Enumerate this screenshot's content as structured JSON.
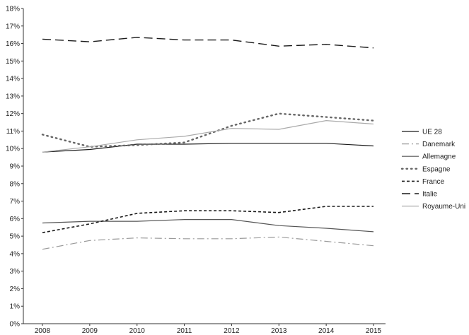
{
  "chart_data": {
    "type": "line",
    "title": "",
    "xlabel": "",
    "ylabel": "",
    "x": [
      "2008",
      "2009",
      "2010",
      "2011",
      "2012",
      "2013",
      "2014",
      "2015"
    ],
    "y_ticks": [
      "0%",
      "1%",
      "2%",
      "3%",
      "4%",
      "5%",
      "6%",
      "7%",
      "8%",
      "9%",
      "10%",
      "11%",
      "12%",
      "13%",
      "14%",
      "15%",
      "16%",
      "17%",
      "18%"
    ],
    "ylim": [
      0,
      18
    ],
    "grid": false,
    "legend_position": "right",
    "series": [
      {
        "name": "UE 28",
        "values": [
          9.8,
          9.95,
          10.25,
          10.25,
          10.3,
          10.3,
          10.3,
          10.15
        ],
        "color": "#1a1a1a",
        "style": "solid"
      },
      {
        "name": "Danemark",
        "values": [
          4.25,
          4.75,
          4.9,
          4.85,
          4.85,
          4.95,
          4.7,
          4.45
        ],
        "color": "#9a9a9a",
        "style": "dashdot"
      },
      {
        "name": "Allemagne",
        "values": [
          5.75,
          5.85,
          5.85,
          5.95,
          5.95,
          5.6,
          5.45,
          5.25
        ],
        "color": "#555555",
        "style": "solid"
      },
      {
        "name": "Espagne",
        "values": [
          10.8,
          10.1,
          10.2,
          10.35,
          11.3,
          12.0,
          11.8,
          11.6
        ],
        "color": "#666666",
        "style": "dotted"
      },
      {
        "name": "France",
        "values": [
          5.2,
          5.7,
          6.3,
          6.45,
          6.45,
          6.35,
          6.7,
          6.7
        ],
        "color": "#1a1a1a",
        "style": "dashed"
      },
      {
        "name": "Italie",
        "values": [
          16.25,
          16.1,
          16.35,
          16.2,
          16.2,
          15.85,
          15.95,
          15.75
        ],
        "color": "#1a1a1a",
        "style": "longdash"
      },
      {
        "name": "Royaume-Uni",
        "values": [
          9.8,
          10.1,
          10.5,
          10.7,
          11.15,
          11.1,
          11.6,
          11.4
        ],
        "color": "#aaaaaa",
        "style": "solid"
      }
    ]
  }
}
